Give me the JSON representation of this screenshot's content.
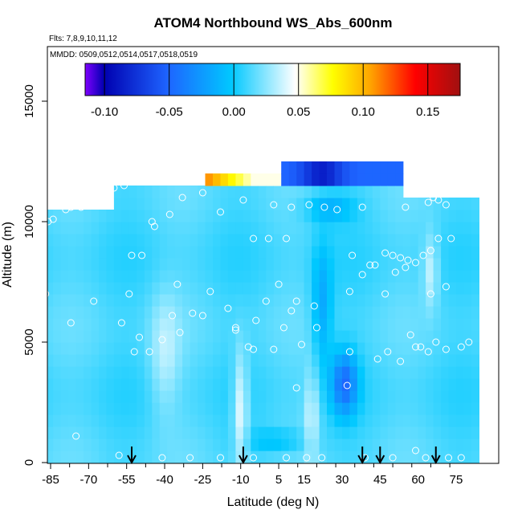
{
  "chart_data": {
    "type": "heatmap",
    "title": "ATOM4 Northbound WS_Abs_600nm",
    "subtitle_lines": [
      "Flts: 7,8,9,10,11,12",
      "MMDD: 0509,0512,0514,0517,0518,0519"
    ],
    "xlabel": "Latitude (deg N)",
    "ylabel": "Altitude (m)",
    "xlim": [
      -87,
      84
    ],
    "ylim": [
      0,
      17500
    ],
    "x_ticks": [
      -85,
      -70,
      -55,
      -40,
      -25,
      -10,
      5,
      15,
      30,
      45,
      60,
      75
    ],
    "y_ticks": [
      0,
      5000,
      10000,
      15000
    ],
    "colorbar": {
      "range": [
        -0.115,
        0.175
      ],
      "ticks": [
        -0.1,
        -0.05,
        0.0,
        0.05,
        0.1,
        0.15
      ],
      "tick_labels": [
        "-0.10",
        "-0.05",
        "0.00",
        "0.05",
        "0.10",
        "0.15"
      ],
      "colors": [
        "#7f00ff",
        "#0000b0",
        "#1e64ff",
        "#00c8ff",
        "#ffffff",
        "#ffff00",
        "#ffa500",
        "#ff0000",
        "#a01010"
      ]
    },
    "field_description": "Mostly light-blue (~0.00 to 0.02) absorption field; darker blue (~-0.05) region near 25-35N at 2000-4500 m; positive (~0.05-0.10) band near -20 to 0 at ~12000 m.",
    "latitude_bands": [
      {
        "lat_min": -87,
        "lat_max": -60,
        "alt_max": 10500
      },
      {
        "lat_min": -60,
        "lat_max": -25,
        "alt_max": 11500
      },
      {
        "lat_min": -25,
        "lat_max": 5,
        "alt_max": 12000
      },
      {
        "lat_min": 5,
        "lat_max": 55,
        "alt_max": 12500
      },
      {
        "lat_min": 55,
        "lat_max": 84,
        "alt_max": 11000
      }
    ],
    "profile_markers_lat": [
      -53,
      -9,
      38,
      45,
      67
    ],
    "observation_points": [
      [
        -86,
        10000
      ],
      [
        -84,
        10100
      ],
      [
        -79,
        10500
      ],
      [
        -77,
        10600
      ],
      [
        -73,
        10600
      ],
      [
        -62,
        11300
      ],
      [
        -60,
        11400
      ],
      [
        -56,
        11500
      ],
      [
        -33,
        11000
      ],
      [
        -25,
        11200
      ],
      [
        -18,
        10400
      ],
      [
        -9,
        10900
      ],
      [
        3,
        10700
      ],
      [
        10,
        10600
      ],
      [
        17,
        10700
      ],
      [
        23,
        10600
      ],
      [
        28,
        10500
      ],
      [
        38,
        10600
      ],
      [
        55,
        10600
      ],
      [
        64,
        10800
      ],
      [
        66,
        11000
      ],
      [
        68,
        10900
      ],
      [
        71,
        10700
      ],
      [
        -44,
        9800
      ],
      [
        -45,
        10000
      ],
      [
        -38,
        10300
      ],
      [
        -5,
        9300
      ],
      [
        1,
        9300
      ],
      [
        8,
        9300
      ],
      [
        -53,
        8600
      ],
      [
        -49,
        8600
      ],
      [
        34,
        8600
      ],
      [
        43,
        8200
      ],
      [
        47,
        8700
      ],
      [
        50,
        8600
      ],
      [
        53,
        8500
      ],
      [
        56,
        8400
      ],
      [
        59,
        8300
      ],
      [
        62,
        8600
      ],
      [
        65,
        8800
      ],
      [
        68,
        9300
      ],
      [
        73,
        9300
      ],
      [
        38,
        7800
      ],
      [
        41,
        8200
      ],
      [
        51,
        7900
      ],
      [
        55,
        8100
      ],
      [
        -87,
        7000
      ],
      [
        -68,
        6700
      ],
      [
        -54,
        7000
      ],
      [
        -35,
        7400
      ],
      [
        -29,
        6200
      ],
      [
        -25,
        6100
      ],
      [
        -22,
        7100
      ],
      [
        -15,
        6400
      ],
      [
        -12,
        5500
      ],
      [
        -4,
        5900
      ],
      [
        0,
        6700
      ],
      [
        5,
        7400
      ],
      [
        12,
        6700
      ],
      [
        19,
        6500
      ],
      [
        33,
        7100
      ],
      [
        47,
        7000
      ],
      [
        65,
        7000
      ],
      [
        71,
        7300
      ],
      [
        -77,
        5800
      ],
      [
        -57,
        5800
      ],
      [
        -50,
        5200
      ],
      [
        -46,
        4600
      ],
      [
        -52,
        4600
      ],
      [
        -41,
        5100
      ],
      [
        -37,
        6100
      ],
      [
        -34,
        5400
      ],
      [
        -12,
        5600
      ],
      [
        -7,
        4800
      ],
      [
        -5,
        4700
      ],
      [
        3,
        4700
      ],
      [
        7,
        5600
      ],
      [
        10,
        6300
      ],
      [
        14,
        4900
      ],
      [
        20,
        5600
      ],
      [
        48,
        4600
      ],
      [
        53,
        4200
      ],
      [
        57,
        5300
      ],
      [
        59,
        4800
      ],
      [
        61,
        4800
      ],
      [
        64,
        4600
      ],
      [
        67,
        5000
      ],
      [
        71,
        4700
      ],
      [
        77,
        4800
      ],
      [
        80,
        5000
      ],
      [
        -75,
        1100
      ],
      [
        -58,
        300
      ],
      [
        -41,
        200
      ],
      [
        -30,
        200
      ],
      [
        -18,
        200
      ],
      [
        -5,
        200
      ],
      [
        8,
        200
      ],
      [
        16,
        200
      ],
      [
        22,
        200
      ],
      [
        39,
        200
      ],
      [
        50,
        200
      ],
      [
        59,
        500
      ],
      [
        63,
        200
      ],
      [
        72,
        200
      ],
      [
        77,
        200
      ],
      [
        12,
        3100
      ],
      [
        32,
        3200
      ],
      [
        33,
        4600
      ],
      [
        44,
        4300
      ]
    ]
  }
}
